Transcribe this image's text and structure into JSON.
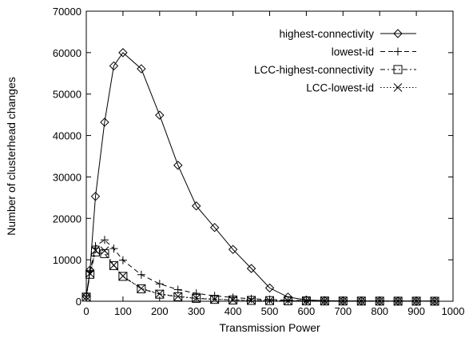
{
  "chart_data": {
    "type": "line",
    "title": "",
    "xlabel": "Transmission Power",
    "ylabel": "Number of clusterhead changes",
    "xlim": [
      0,
      1000
    ],
    "ylim": [
      0,
      70000
    ],
    "xticks": [
      0,
      100,
      200,
      300,
      400,
      500,
      600,
      700,
      800,
      900,
      1000
    ],
    "yticks": [
      0,
      10000,
      20000,
      30000,
      40000,
      50000,
      60000,
      70000
    ],
    "grid": false,
    "legend_position": "top-right",
    "series": [
      {
        "name": "highest-connectivity",
        "marker": "diamond",
        "line": "solid",
        "x": [
          0,
          10,
          25,
          50,
          75,
          100,
          150,
          200,
          250,
          300,
          350,
          400,
          450,
          500,
          550,
          600,
          650,
          700,
          750,
          800,
          850,
          900,
          950
        ],
        "y": [
          1200,
          7500,
          25300,
          43200,
          56800,
          60000,
          56100,
          44900,
          32800,
          23000,
          17800,
          12500,
          7900,
          3200,
          1000,
          300,
          150,
          100,
          80,
          60,
          50,
          40,
          30
        ]
      },
      {
        "name": "lowest-id",
        "marker": "plus",
        "line": "dashed",
        "x": [
          0,
          10,
          25,
          50,
          75,
          100,
          150,
          200,
          250,
          300,
          350,
          400,
          450,
          500,
          550,
          600,
          650,
          700,
          750,
          800,
          850,
          900,
          950
        ],
        "y": [
          1200,
          7200,
          13300,
          14800,
          12700,
          9900,
          6400,
          4200,
          2800,
          1900,
          1300,
          900,
          600,
          400,
          250,
          150,
          100,
          80,
          60,
          50,
          40,
          30,
          20
        ]
      },
      {
        "name": "LCC-highest-connectivity",
        "marker": "square",
        "line": "dashdot",
        "x": [
          0,
          10,
          25,
          50,
          75,
          100,
          150,
          200,
          250,
          300,
          350,
          400,
          450,
          500,
          550,
          600,
          650,
          700,
          750,
          800,
          850,
          900,
          950
        ],
        "y": [
          1000,
          6500,
          11900,
          11500,
          8600,
          6000,
          3000,
          1700,
          1100,
          700,
          450,
          300,
          200,
          150,
          100,
          80,
          60,
          50,
          40,
          30,
          20,
          20,
          10
        ]
      },
      {
        "name": "LCC-lowest-id",
        "marker": "cross",
        "line": "dotted",
        "x": [
          0,
          10,
          25,
          50,
          75,
          100,
          150,
          200,
          250,
          300,
          350,
          400,
          450,
          500,
          550,
          600,
          650,
          700,
          750,
          800,
          850,
          900,
          950
        ],
        "y": [
          1000,
          6700,
          12300,
          12200,
          8700,
          6100,
          3100,
          1800,
          1150,
          750,
          480,
          320,
          210,
          160,
          110,
          85,
          65,
          55,
          45,
          35,
          25,
          20,
          15
        ]
      }
    ]
  }
}
